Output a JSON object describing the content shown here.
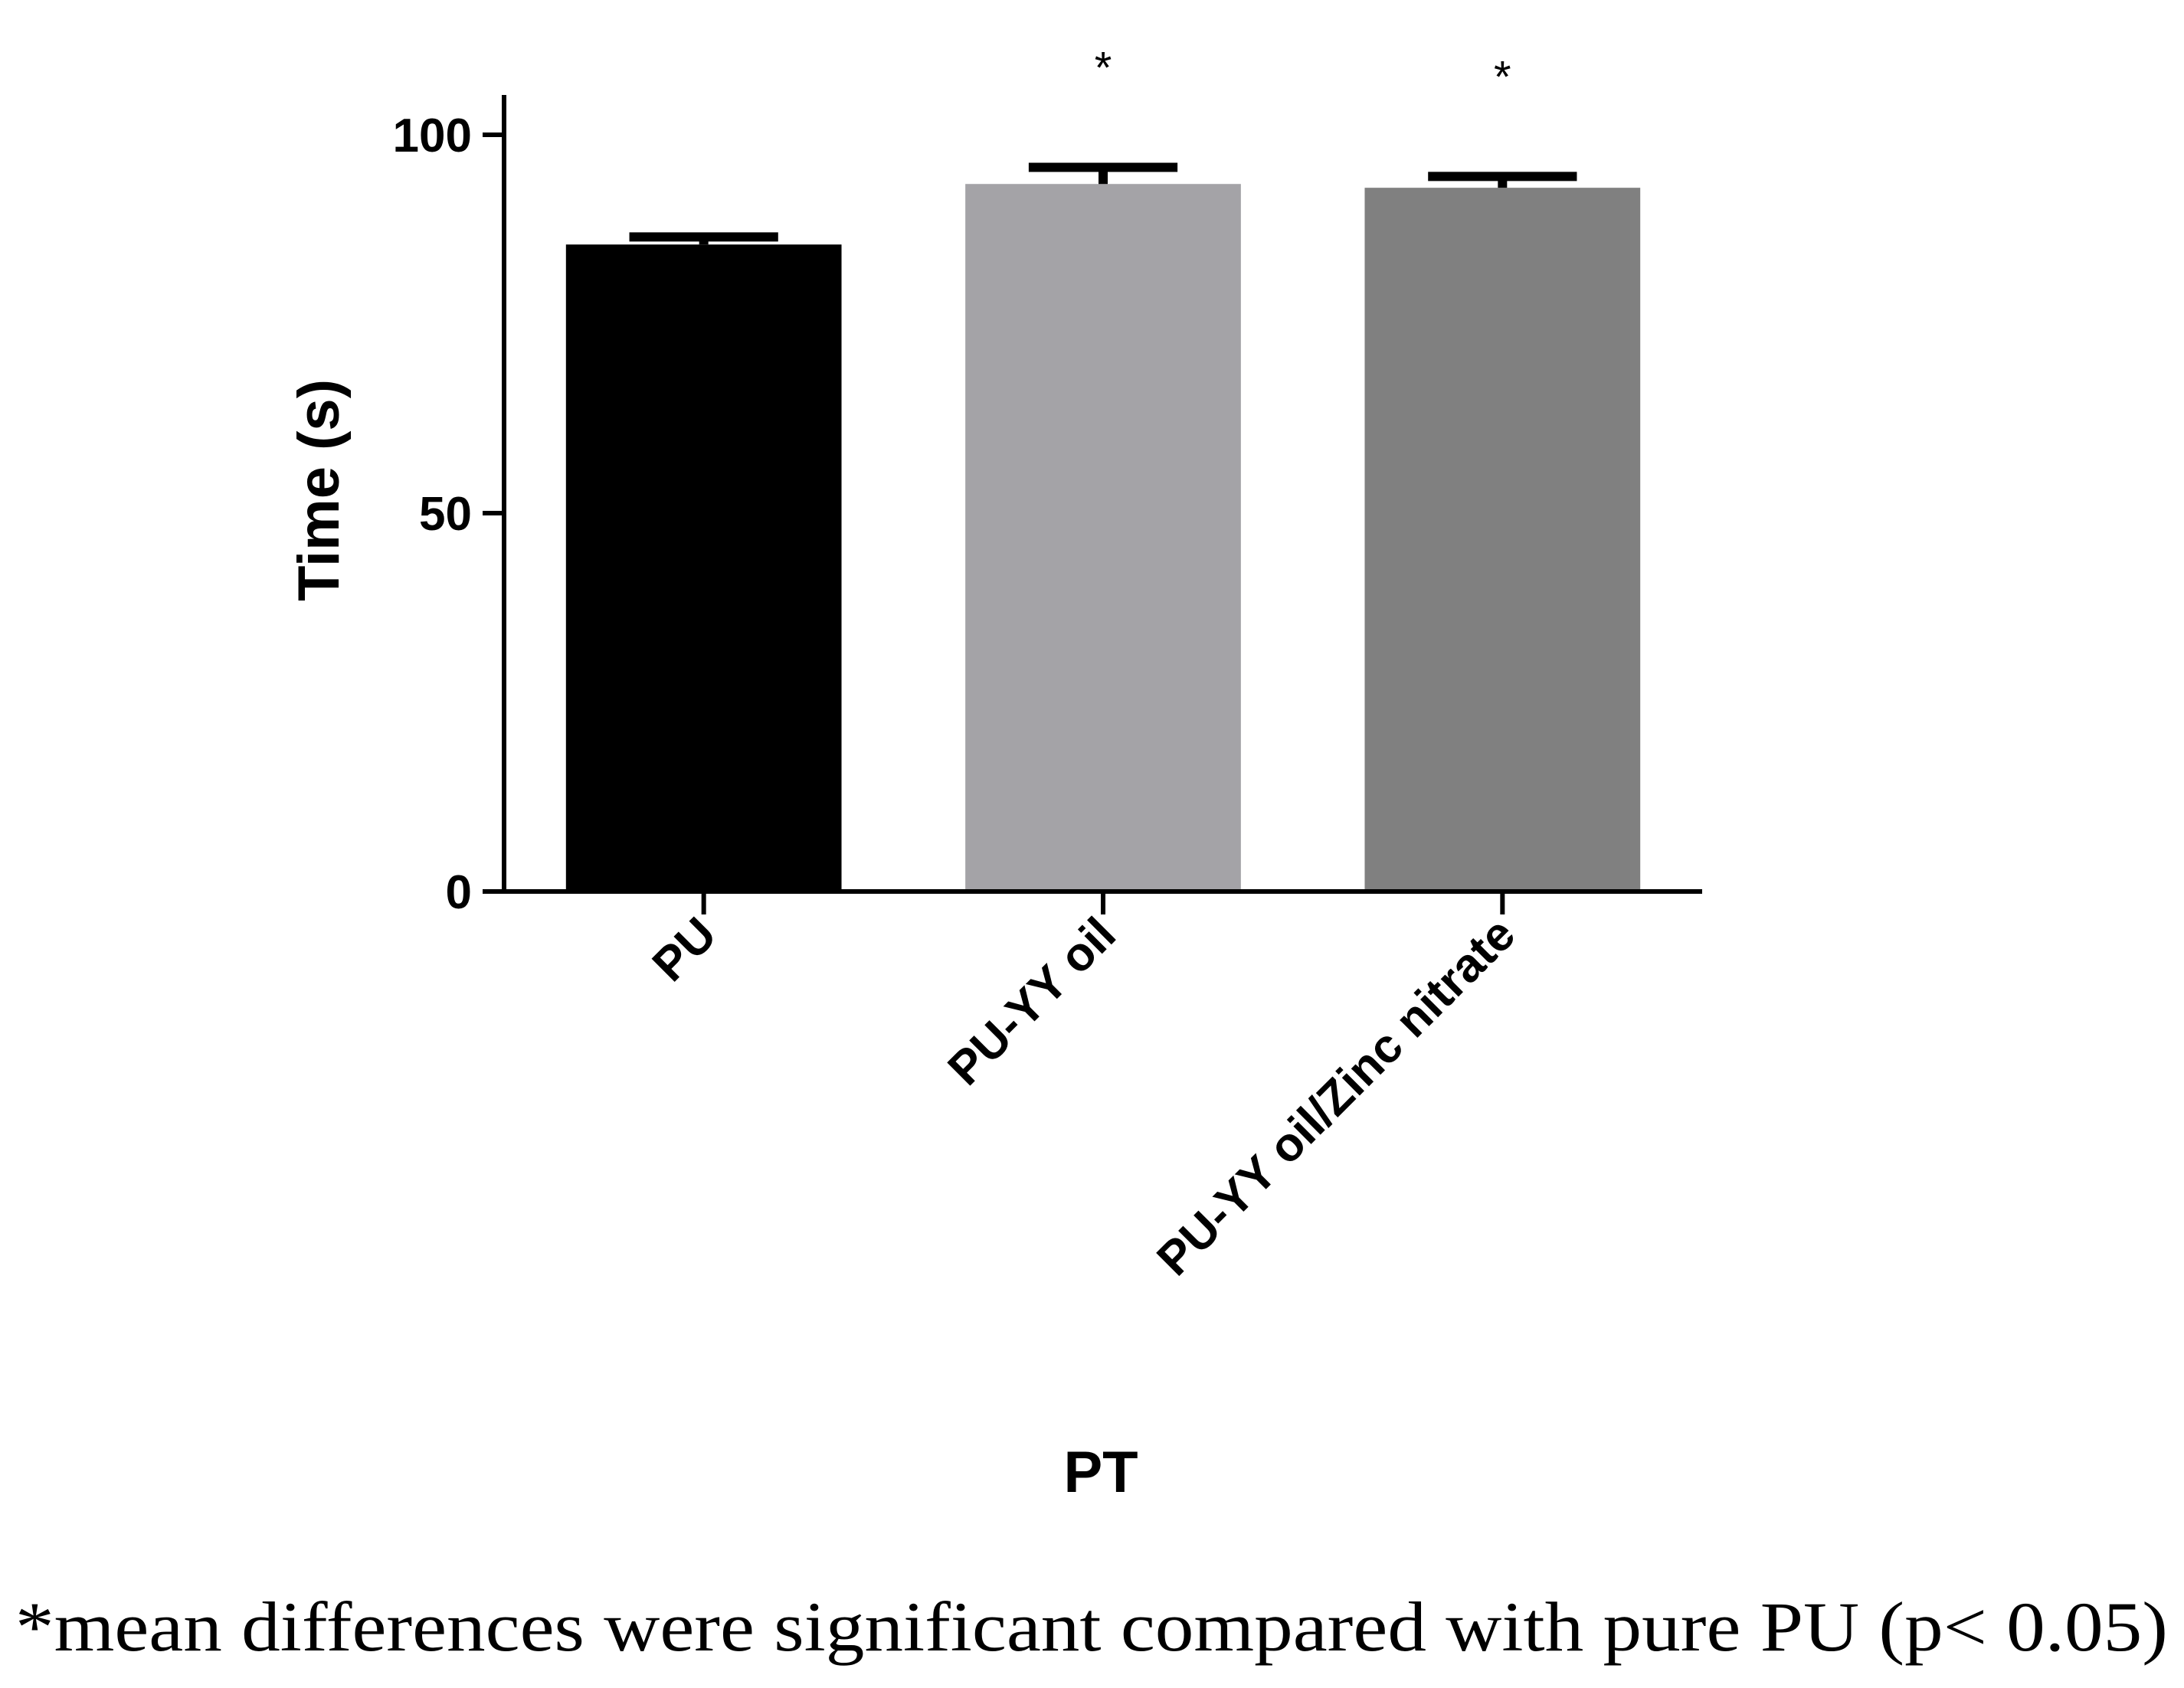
{
  "chart_data": {
    "type": "bar",
    "categories": [
      "PU",
      "PU-YY oil",
      "PU-YY oil/Zinc nitrate"
    ],
    "values": [
      85.5,
      93.5,
      93.0
    ],
    "errors": [
      1.0,
      2.2,
      1.5
    ],
    "significance": [
      "",
      "*",
      "*"
    ],
    "bar_colors": [
      "#000000",
      "#a4a3a7",
      "#808080"
    ],
    "xlabel": "PT",
    "ylabel": "Time (s)",
    "ylim": [
      0,
      100
    ],
    "yticks": [
      0,
      50,
      100
    ],
    "title": "",
    "grid": false,
    "legend": "none"
  },
  "footnote": "*mean differences were significant compared with pure PU (p< 0.05)"
}
